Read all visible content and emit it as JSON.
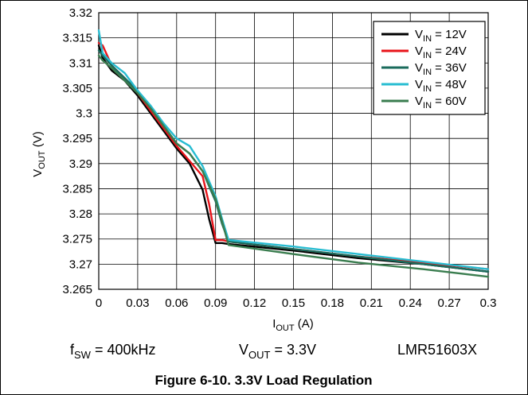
{
  "chart_data": {
    "type": "line",
    "title": "",
    "xlabel": {
      "main": "I",
      "sub": "OUT",
      "unit": " (A)"
    },
    "ylabel": {
      "main": "V",
      "sub": "OUT",
      "unit": " (V)"
    },
    "xlim": [
      0,
      0.3
    ],
    "ylim": [
      3.265,
      3.32
    ],
    "x_ticks": [
      "0",
      "0.03",
      "0.06",
      "0.09",
      "0.12",
      "0.15",
      "0.18",
      "0.21",
      "0.24",
      "0.27",
      "0.3"
    ],
    "y_ticks": [
      "3.32",
      "3.315",
      "3.31",
      "3.305",
      "3.3",
      "3.295",
      "3.29",
      "3.285",
      "3.28",
      "3.275",
      "3.27",
      "3.265"
    ],
    "grid": true,
    "legend_position": "top-right",
    "series": [
      {
        "name": "V_IN = 12V",
        "label": {
          "main": "V",
          "sub": "IN",
          "rest": " = 12V"
        },
        "color": "#000000",
        "x": [
          0,
          0.003,
          0.01,
          0.02,
          0.03,
          0.04,
          0.05,
          0.06,
          0.07,
          0.08,
          0.085,
          0.09,
          0.095,
          0.1,
          0.15,
          0.2,
          0.25,
          0.3
        ],
        "y": [
          3.3135,
          3.311,
          3.3085,
          3.3065,
          3.3035,
          3.3,
          3.2965,
          3.293,
          3.29,
          3.2848,
          3.279,
          3.2742,
          3.2742,
          3.274,
          3.2727,
          3.2712,
          3.27,
          3.2685
        ]
      },
      {
        "name": "V_IN = 24V",
        "label": {
          "main": "V",
          "sub": "IN",
          "rest": " = 24V"
        },
        "color": "#e8141a",
        "x": [
          0,
          0.003,
          0.01,
          0.02,
          0.03,
          0.04,
          0.05,
          0.06,
          0.07,
          0.08,
          0.085,
          0.09,
          0.095,
          0.1,
          0.15,
          0.2,
          0.25,
          0.3
        ],
        "y": [
          3.314,
          3.3135,
          3.3095,
          3.307,
          3.304,
          3.3005,
          3.297,
          3.2935,
          3.2905,
          3.2875,
          3.282,
          3.2748,
          3.2748,
          3.2745,
          3.273,
          3.2715,
          3.2703,
          3.269
        ]
      },
      {
        "name": "V_IN = 36V",
        "label": {
          "main": "V",
          "sub": "IN",
          "rest": " = 36V"
        },
        "color": "#1a6b5c",
        "x": [
          0,
          0.003,
          0.01,
          0.02,
          0.03,
          0.04,
          0.05,
          0.06,
          0.07,
          0.08,
          0.09,
          0.095,
          0.1,
          0.15,
          0.2,
          0.25,
          0.3
        ],
        "y": [
          3.3125,
          3.3115,
          3.3095,
          3.307,
          3.3045,
          3.301,
          3.2975,
          3.294,
          3.292,
          3.2885,
          3.2825,
          3.278,
          3.2745,
          3.273,
          3.2715,
          3.27,
          3.2685
        ]
      },
      {
        "name": "V_IN = 48V",
        "label": {
          "main": "V",
          "sub": "IN",
          "rest": " = 48V"
        },
        "color": "#27bcd1",
        "x": [
          0,
          0.003,
          0.01,
          0.02,
          0.03,
          0.04,
          0.05,
          0.06,
          0.07,
          0.08,
          0.09,
          0.095,
          0.1,
          0.15,
          0.2,
          0.25,
          0.3
        ],
        "y": [
          3.3165,
          3.312,
          3.31,
          3.308,
          3.3045,
          3.3015,
          3.298,
          3.295,
          3.2935,
          3.2895,
          3.2835,
          3.279,
          3.2748,
          3.2735,
          3.272,
          3.2705,
          3.269
        ]
      },
      {
        "name": "V_IN = 60V",
        "label": {
          "main": "V",
          "sub": "IN",
          "rest": " = 60V"
        },
        "color": "#3a7d4f",
        "x": [
          0,
          0.003,
          0.01,
          0.02,
          0.03,
          0.04,
          0.05,
          0.06,
          0.07,
          0.08,
          0.09,
          0.095,
          0.1,
          0.15,
          0.2,
          0.25,
          0.3
        ],
        "y": [
          3.3115,
          3.3105,
          3.309,
          3.3065,
          3.304,
          3.301,
          3.2975,
          3.294,
          3.292,
          3.2885,
          3.283,
          3.2785,
          3.2738,
          3.272,
          3.2703,
          3.269,
          3.2675
        ]
      }
    ]
  },
  "conditions": {
    "fsw": {
      "main": "f",
      "sub": "SW",
      "rest": " = 400kHz"
    },
    "vout": {
      "main": "V",
      "sub": "OUT",
      "rest": " = 3.3V"
    },
    "device": "LMR51603X"
  },
  "caption": "Figure 6-10. 3.3V Load Regulation"
}
